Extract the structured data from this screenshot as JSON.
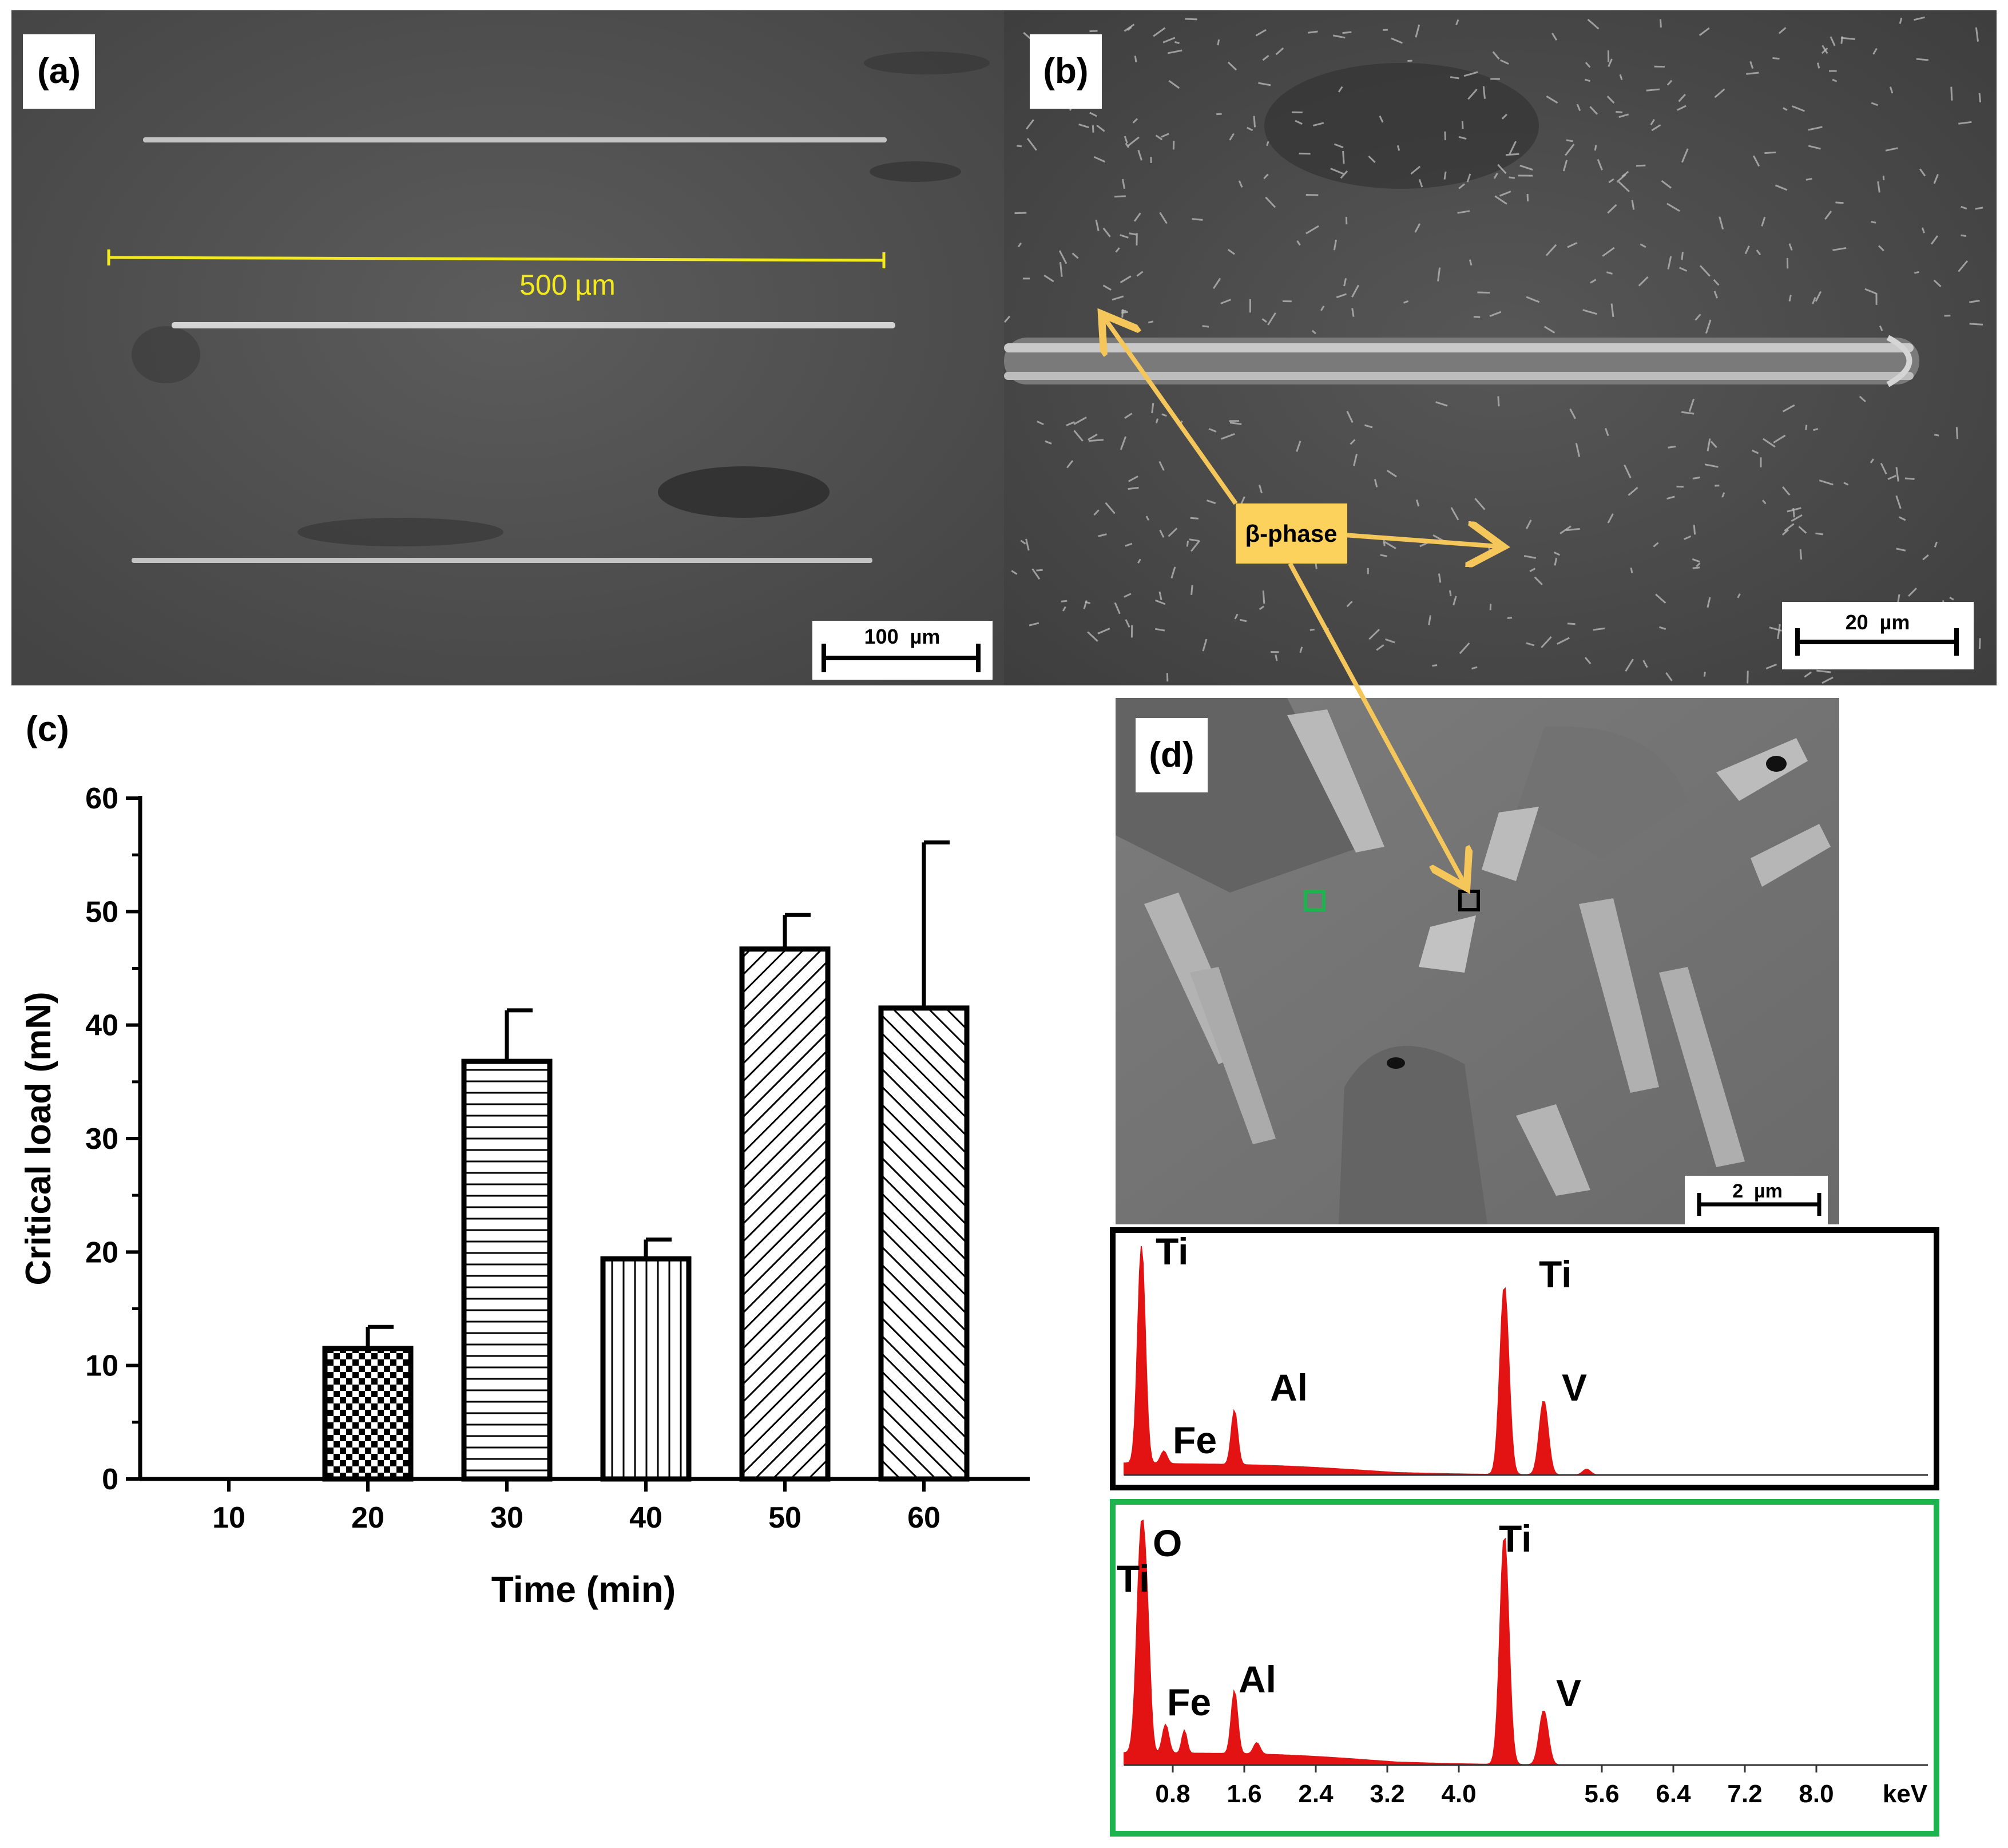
{
  "panels": {
    "a": {
      "label": "(a)",
      "scalebar": "100  µm",
      "measure": "500 µm"
    },
    "b": {
      "label": "(b)",
      "scalebar": "20  µm",
      "annotation": "β-phase"
    },
    "c": {
      "label": "(c)"
    },
    "d": {
      "label": "(d)",
      "scalebar": "2  µm"
    }
  },
  "colors": {
    "measure_yellow": "#f2ea1f",
    "arrow_yellow": "#f5c75a",
    "edx_red": "#e31313",
    "green_box": "#1db34f",
    "black_box": "#000000"
  },
  "chart_data": {
    "type": "bar",
    "categories": [
      "10",
      "20",
      "30",
      "40",
      "50",
      "60"
    ],
    "values": [
      0,
      11.5,
      36.8,
      19.4,
      46.7,
      41.5
    ],
    "errors": [
      0,
      1.9,
      4.5,
      1.7,
      3.0,
      14.6
    ],
    "patterns": [
      "none",
      "checker",
      "horizontal",
      "vertical",
      "diag-up",
      "diag-down"
    ],
    "xlabel": "Time (min)",
    "ylabel": "Critical load (mN)",
    "ylim": [
      0,
      60
    ],
    "yticks": [
      "0",
      "10",
      "20",
      "30",
      "40",
      "50",
      "60"
    ],
    "grid": false
  },
  "edx": {
    "beta_region": {
      "peak_labels": [
        "Ti",
        "Fe",
        "Al",
        "Ti",
        "V"
      ]
    },
    "matrix_region": {
      "peak_labels": [
        "Ti",
        "O",
        "Fe",
        "Al",
        "Ti",
        "V"
      ]
    },
    "axis_ticks": [
      "0.8",
      "1.6",
      "2.4",
      "3.2",
      "4.0",
      "5.6",
      "6.4",
      "7.2",
      "8.0"
    ],
    "axis_unit": "keV"
  }
}
